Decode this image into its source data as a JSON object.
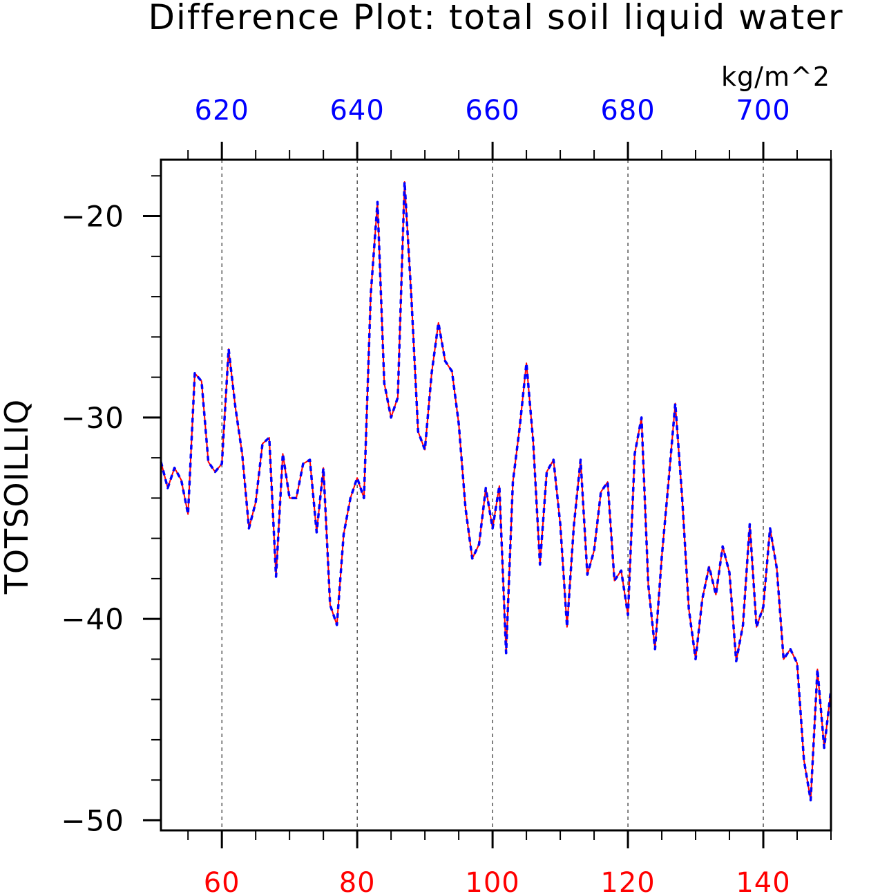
{
  "chart_data": {
    "type": "line",
    "title": "Difference Plot: total soil liquid water",
    "units_label": "kg/m^2",
    "ylabel": "TOTSOILLIQ",
    "xlim": [
      51,
      150
    ],
    "ylim": [
      -50.5,
      -17.2
    ],
    "top_axis_ticks": [
      "620",
      "640",
      "660",
      "680",
      "700"
    ],
    "bottom_axis_ticks": [
      "60",
      "80",
      "100",
      "120",
      "140"
    ],
    "y_axis_ticks": [
      "-20",
      "-30",
      "-40",
      "-50"
    ],
    "colors": {
      "top_axis": "#0000ff",
      "bottom_axis": "#ff0000",
      "series_a": "#ff0000",
      "series_b": "#0000ff"
    },
    "grid": "vertical dashed at major x ticks",
    "x": [
      51,
      52,
      53,
      54,
      55,
      56,
      57,
      58,
      59,
      60,
      61,
      62,
      63,
      64,
      65,
      66,
      67,
      68,
      69,
      70,
      71,
      72,
      73,
      74,
      75,
      76,
      77,
      78,
      79,
      80,
      81,
      82,
      83,
      84,
      85,
      86,
      87,
      88,
      89,
      90,
      91,
      92,
      93,
      94,
      95,
      96,
      97,
      98,
      99,
      100,
      101,
      102,
      103,
      104,
      105,
      106,
      107,
      108,
      109,
      110,
      111,
      112,
      113,
      114,
      115,
      116,
      117,
      118,
      119,
      120,
      121,
      122,
      123,
      124,
      125,
      126,
      127,
      128,
      129,
      130,
      131,
      132,
      133,
      134,
      135,
      136,
      137,
      138,
      139,
      140,
      141,
      142,
      143,
      144,
      145,
      146,
      147,
      148,
      149,
      150
    ],
    "series": [
      {
        "values": [
          -32.2,
          -33.5,
          -32.5,
          -33.1,
          -34.8,
          -27.8,
          -28.2,
          -32.2,
          -32.7,
          -32.3,
          -26.6,
          -29.5,
          -31.8,
          -35.5,
          -34.2,
          -31.3,
          -31.0,
          -37.9,
          -31.8,
          -34.0,
          -34.0,
          -32.3,
          -32.1,
          -35.7,
          -32.5,
          -39.3,
          -40.3,
          -35.8,
          -34.0,
          -33.0,
          -34.0,
          -23.9,
          -19.3,
          -28.3,
          -30.0,
          -29.0,
          -18.3,
          -24.0,
          -30.7,
          -31.6,
          -27.8,
          -25.3,
          -27.2,
          -27.7,
          -30.3,
          -34.5,
          -37.0,
          -36.3,
          -33.5,
          -35.5,
          -33.4,
          -41.7,
          -33.2,
          -30.5,
          -27.3,
          -31.2,
          -37.3,
          -32.7,
          -32.1,
          -35.3,
          -40.4,
          -35.4,
          -32.1,
          -37.8,
          -36.6,
          -33.7,
          -33.2,
          -38.1,
          -37.6,
          -39.8,
          -31.8,
          -30.0,
          -38.3,
          -41.5,
          -36.9,
          -33.2,
          -29.3,
          -33.9,
          -39.5,
          -42.0,
          -39.0,
          -37.4,
          -38.8,
          -36.4,
          -37.7,
          -42.1,
          -40.3,
          -35.3,
          -40.4,
          -39.4,
          -35.5,
          -37.5,
          -42.0,
          -41.5,
          -42.2,
          -47.0,
          -49.0,
          -42.5,
          -46.4,
          -43.5
        ]
      },
      {
        "values": [
          -32.2,
          -33.5,
          -32.5,
          -33.1,
          -34.8,
          -27.8,
          -28.2,
          -32.2,
          -32.7,
          -32.3,
          -26.6,
          -29.5,
          -31.8,
          -35.5,
          -34.2,
          -31.3,
          -31.0,
          -37.9,
          -31.8,
          -34.0,
          -34.0,
          -32.3,
          -32.1,
          -35.7,
          -32.5,
          -39.3,
          -40.3,
          -35.8,
          -34.0,
          -33.0,
          -34.0,
          -23.9,
          -19.3,
          -28.3,
          -30.0,
          -29.0,
          -18.3,
          -24.0,
          -30.7,
          -31.6,
          -27.8,
          -25.3,
          -27.2,
          -27.7,
          -30.3,
          -34.5,
          -37.0,
          -36.3,
          -33.5,
          -35.5,
          -33.4,
          -41.7,
          -33.2,
          -30.5,
          -27.3,
          -31.2,
          -37.3,
          -32.7,
          -32.1,
          -35.3,
          -40.4,
          -35.4,
          -32.1,
          -37.8,
          -36.6,
          -33.7,
          -33.2,
          -38.1,
          -37.6,
          -39.8,
          -31.8,
          -30.0,
          -38.3,
          -41.5,
          -36.9,
          -33.2,
          -29.3,
          -33.9,
          -39.5,
          -42.0,
          -39.0,
          -37.4,
          -38.8,
          -36.4,
          -37.7,
          -42.1,
          -40.3,
          -35.3,
          -40.4,
          -39.4,
          -35.5,
          -37.5,
          -42.0,
          -41.5,
          -42.2,
          -47.0,
          -49.0,
          -42.5,
          -46.4,
          -43.5
        ]
      }
    ]
  }
}
